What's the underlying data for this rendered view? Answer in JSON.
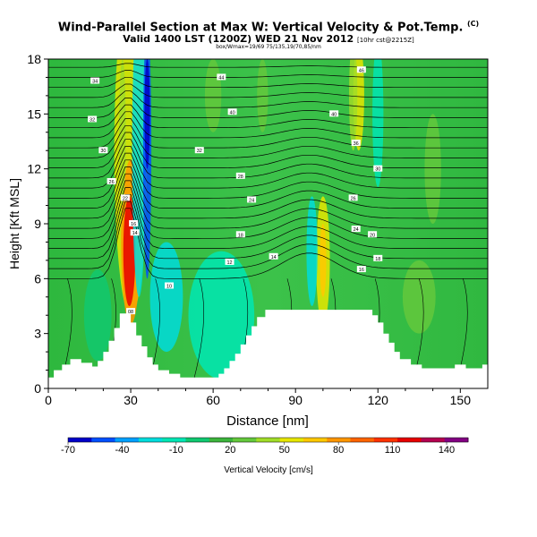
{
  "header": {
    "title": "Wind-Parallel Section at Max W: Vertical Velocity & Pot.Temp.",
    "title_corner": "(C)",
    "subtitle": "Valid 1400 LST (1200Z) WED 21 Nov 2012",
    "subtitle_small": "[10hr cst@2215Z]",
    "subsubtitle": "box/Wmax=19/69 75/135,19/70,85/nm"
  },
  "chart_data": {
    "type": "heatmap",
    "xlabel": "Distance [nm]",
    "ylabel": "Height [Kft MSL]",
    "xlim": [
      0,
      160
    ],
    "ylim": [
      0,
      18
    ],
    "x_ticks": [
      "0",
      "30",
      "60",
      "90",
      "120",
      "150"
    ],
    "y_ticks": [
      "0",
      "3",
      "6",
      "9",
      "12",
      "15",
      "18"
    ],
    "colorbar": {
      "label": "Vertical Velocity [cm/s]",
      "tick_labels": [
        "-70",
        "-40",
        "-10",
        "20",
        "50",
        "80",
        "110",
        "140"
      ],
      "colors": [
        "#0000c8",
        "#0050ff",
        "#00a0ff",
        "#00dcdc",
        "#00e6b4",
        "#10c870",
        "#3cb43c",
        "#64c83c",
        "#a0dc28",
        "#e6e600",
        "#ffc800",
        "#ff9600",
        "#ff6400",
        "#ff3200",
        "#e60000",
        "#b40050",
        "#820082"
      ]
    },
    "terrain_kft": [
      [
        0,
        0.6
      ],
      [
        2,
        0.6
      ],
      [
        2,
        1.0
      ],
      [
        5,
        1.0
      ],
      [
        5,
        1.3
      ],
      [
        8,
        1.3
      ],
      [
        8,
        1.6
      ],
      [
        12,
        1.6
      ],
      [
        12,
        1.4
      ],
      [
        16,
        1.4
      ],
      [
        16,
        1.2
      ],
      [
        18,
        1.2
      ],
      [
        18,
        1.5
      ],
      [
        20,
        1.5
      ],
      [
        20,
        2.0
      ],
      [
        22,
        2.0
      ],
      [
        22,
        2.6
      ],
      [
        24,
        2.6
      ],
      [
        24,
        3.3
      ],
      [
        26,
        3.3
      ],
      [
        26,
        4.1
      ],
      [
        30,
        4.1
      ],
      [
        30,
        3.6
      ],
      [
        32,
        3.6
      ],
      [
        32,
        2.9
      ],
      [
        34,
        2.9
      ],
      [
        34,
        2.3
      ],
      [
        36,
        2.3
      ],
      [
        36,
        1.7
      ],
      [
        38,
        1.7
      ],
      [
        38,
        1.3
      ],
      [
        40,
        1.3
      ],
      [
        40,
        1.0
      ],
      [
        44,
        1.0
      ],
      [
        44,
        0.8
      ],
      [
        48,
        0.8
      ],
      [
        48,
        0.6
      ],
      [
        62,
        0.6
      ],
      [
        62,
        0.8
      ],
      [
        64,
        0.8
      ],
      [
        64,
        1.1
      ],
      [
        66,
        1.1
      ],
      [
        66,
        1.5
      ],
      [
        68,
        1.5
      ],
      [
        68,
        1.9
      ],
      [
        70,
        1.9
      ],
      [
        70,
        2.4
      ],
      [
        72,
        2.4
      ],
      [
        72,
        2.9
      ],
      [
        74,
        2.9
      ],
      [
        74,
        3.4
      ],
      [
        76,
        3.4
      ],
      [
        76,
        3.9
      ],
      [
        79,
        3.9
      ],
      [
        79,
        4.3
      ],
      [
        118,
        4.3
      ],
      [
        118,
        4.0
      ],
      [
        120,
        4.0
      ],
      [
        120,
        3.6
      ],
      [
        122,
        3.6
      ],
      [
        122,
        3.0
      ],
      [
        124,
        3.0
      ],
      [
        124,
        2.5
      ],
      [
        126,
        2.5
      ],
      [
        126,
        2.0
      ],
      [
        128,
        2.0
      ],
      [
        128,
        1.6
      ],
      [
        132,
        1.6
      ],
      [
        132,
        1.3
      ],
      [
        136,
        1.3
      ],
      [
        136,
        1.1
      ],
      [
        148,
        1.1
      ],
      [
        148,
        1.3
      ],
      [
        152,
        1.3
      ],
      [
        152,
        1.1
      ],
      [
        158,
        1.1
      ],
      [
        158,
        1.3
      ],
      [
        160,
        1.3
      ]
    ],
    "contour_labels": [
      {
        "x": 17,
        "y": 16.8,
        "text": "34"
      },
      {
        "x": 16,
        "y": 14.7,
        "text": "32"
      },
      {
        "x": 20,
        "y": 13.0,
        "text": "30"
      },
      {
        "x": 23,
        "y": 11.3,
        "text": "26"
      },
      {
        "x": 28,
        "y": 10.4,
        "text": "22"
      },
      {
        "x": 31,
        "y": 9.0,
        "text": "16"
      },
      {
        "x": 31.5,
        "y": 8.5,
        "text": "14"
      },
      {
        "x": 44,
        "y": 5.6,
        "text": "10"
      },
      {
        "x": 30,
        "y": 4.2,
        "text": "08"
      },
      {
        "x": 63,
        "y": 17.0,
        "text": "44"
      },
      {
        "x": 67,
        "y": 15.1,
        "text": "40"
      },
      {
        "x": 55,
        "y": 13.0,
        "text": "32"
      },
      {
        "x": 70,
        "y": 11.6,
        "text": "28"
      },
      {
        "x": 74,
        "y": 10.3,
        "text": "24"
      },
      {
        "x": 70,
        "y": 8.4,
        "text": "18"
      },
      {
        "x": 82,
        "y": 7.2,
        "text": "14"
      },
      {
        "x": 66,
        "y": 6.9,
        "text": "12"
      },
      {
        "x": 114,
        "y": 17.4,
        "text": "46"
      },
      {
        "x": 104,
        "y": 15.0,
        "text": "40"
      },
      {
        "x": 112,
        "y": 13.4,
        "text": "36"
      },
      {
        "x": 120,
        "y": 12.0,
        "text": "30"
      },
      {
        "x": 111,
        "y": 10.4,
        "text": "26"
      },
      {
        "x": 112,
        "y": 8.7,
        "text": "24"
      },
      {
        "x": 118,
        "y": 8.4,
        "text": "20"
      },
      {
        "x": 120,
        "y": 7.1,
        "text": "18"
      },
      {
        "x": 114,
        "y": 6.5,
        "text": "16"
      }
    ]
  }
}
